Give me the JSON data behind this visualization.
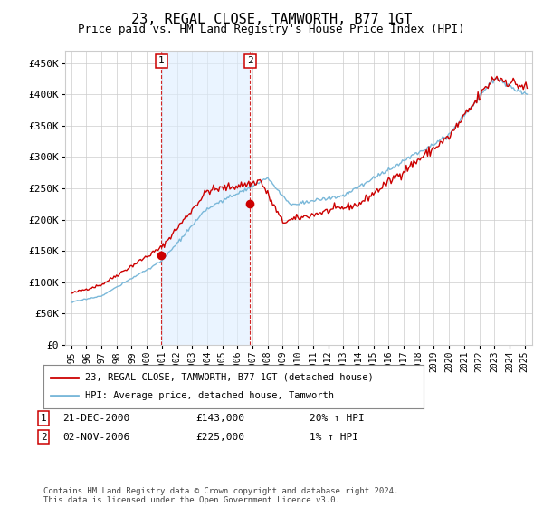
{
  "title": "23, REGAL CLOSE, TAMWORTH, B77 1GT",
  "subtitle": "Price paid vs. HM Land Registry's House Price Index (HPI)",
  "ylim": [
    0,
    470000
  ],
  "yticks": [
    0,
    50000,
    100000,
    150000,
    200000,
    250000,
    300000,
    350000,
    400000,
    450000
  ],
  "ytick_labels": [
    "£0",
    "£50K",
    "£100K",
    "£150K",
    "£200K",
    "£250K",
    "£300K",
    "£350K",
    "£400K",
    "£450K"
  ],
  "sale1_date_x": 2000.97,
  "sale1_price": 143000,
  "sale2_date_x": 2006.84,
  "sale2_price": 225000,
  "sale1_label": "21-DEC-2000",
  "sale1_amount": "£143,000",
  "sale1_hpi": "20% ↑ HPI",
  "sale2_label": "02-NOV-2006",
  "sale2_amount": "£225,000",
  "sale2_hpi": "1% ↑ HPI",
  "legend1": "23, REGAL CLOSE, TAMWORTH, B77 1GT (detached house)",
  "legend2": "HPI: Average price, detached house, Tamworth",
  "footer": "Contains HM Land Registry data © Crown copyright and database right 2024.\nThis data is licensed under the Open Government Licence v3.0.",
  "hpi_color": "#7ab8d9",
  "price_color": "#cc0000",
  "shade_color": "#ddeeff",
  "background_color": "#ffffff",
  "grid_color": "#cccccc",
  "title_fontsize": 11,
  "subtitle_fontsize": 9,
  "xlim_left": 1994.6,
  "xlim_right": 2025.5
}
